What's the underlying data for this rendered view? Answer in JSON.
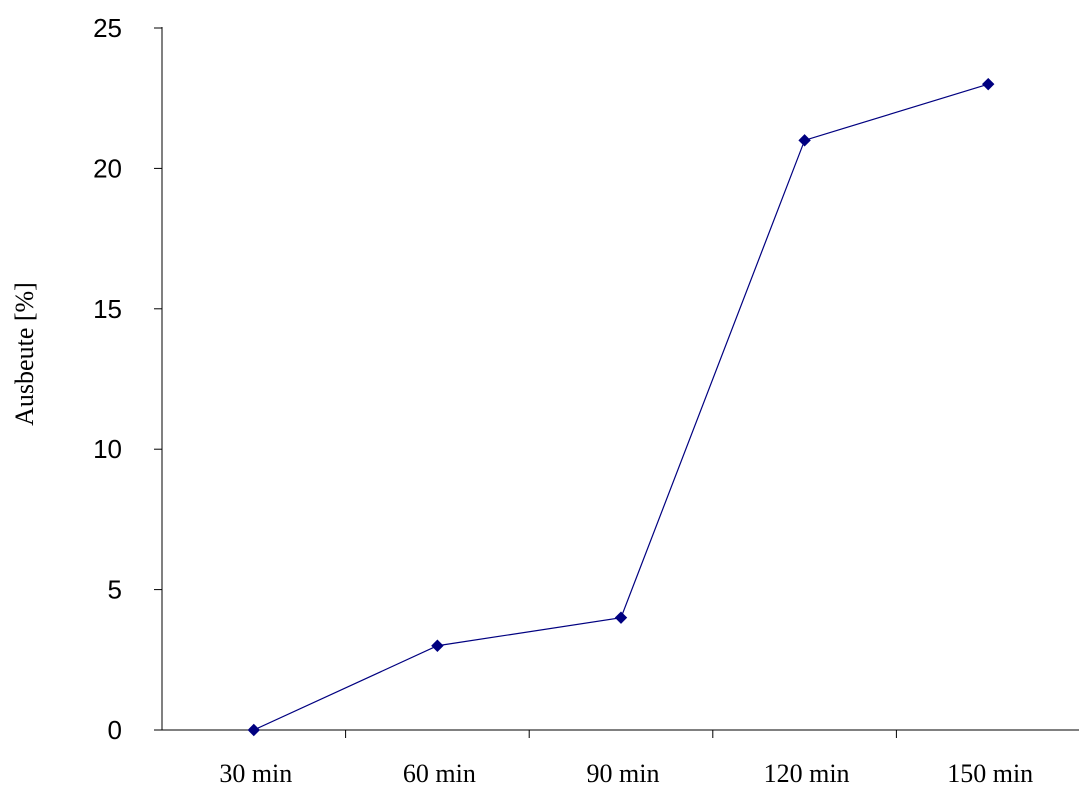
{
  "chart_data": {
    "type": "line",
    "categories": [
      "30 min",
      "60 min",
      "90 min",
      "120 min",
      "150 min"
    ],
    "series": [
      {
        "values": [
          0,
          3,
          4,
          21,
          23
        ],
        "color": "#000080",
        "marker": "diamond"
      }
    ],
    "title": "",
    "xlabel": "",
    "ylabel": "Ausbeute [%]",
    "ylim": [
      0,
      25
    ],
    "yticks": [
      0,
      5,
      10,
      15,
      20,
      25
    ],
    "grid": false,
    "legend": "none"
  }
}
